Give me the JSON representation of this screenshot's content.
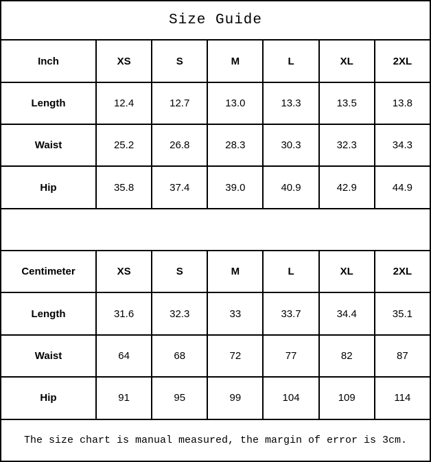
{
  "title": "Size Guide",
  "footer_note": "The size chart is manual measured, the margin of error is 3cm.",
  "colors": {
    "border": "#000000",
    "background": "#ffffff",
    "text": "#000000"
  },
  "inch_table": {
    "unit_label": "Inch",
    "sizes": [
      "XS",
      "S",
      "M",
      "L",
      "XL",
      "2XL"
    ],
    "rows": [
      {
        "label": "Length",
        "values": [
          "12.4",
          "12.7",
          "13.0",
          "13.3",
          "13.5",
          "13.8"
        ]
      },
      {
        "label": "Waist",
        "values": [
          "25.2",
          "26.8",
          "28.3",
          "30.3",
          "32.3",
          "34.3"
        ]
      },
      {
        "label": "Hip",
        "values": [
          "35.8",
          "37.4",
          "39.0",
          "40.9",
          "42.9",
          "44.9"
        ]
      }
    ]
  },
  "cm_table": {
    "unit_label": "Centimeter",
    "sizes": [
      "XS",
      "S",
      "M",
      "L",
      "XL",
      "2XL"
    ],
    "rows": [
      {
        "label": "Length",
        "values": [
          "31.6",
          "32.3",
          "33",
          "33.7",
          "34.4",
          "35.1"
        ]
      },
      {
        "label": "Waist",
        "values": [
          "64",
          "68",
          "72",
          "77",
          "82",
          "87"
        ]
      },
      {
        "label": "Hip",
        "values": [
          "91",
          "95",
          "99",
          "104",
          "109",
          "114"
        ]
      }
    ]
  }
}
